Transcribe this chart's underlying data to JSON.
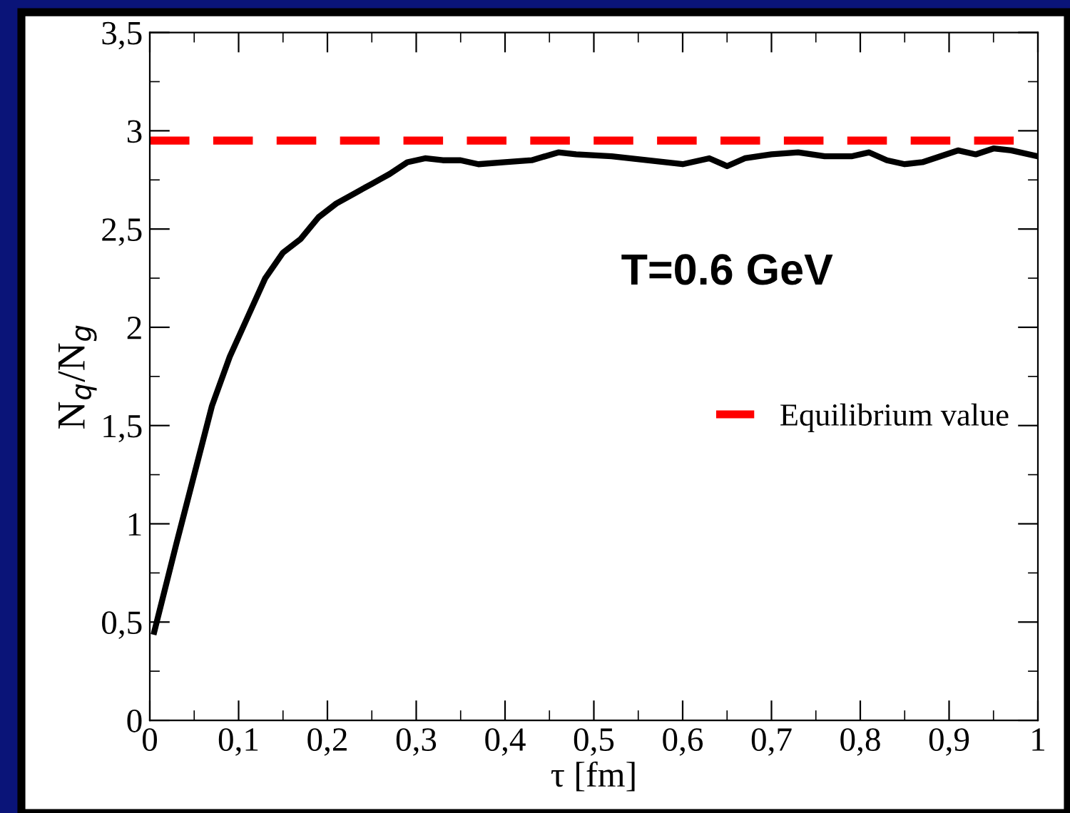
{
  "chart_data": {
    "type": "line",
    "xlabel": "τ [fm]",
    "ylabel": "N$_{q}$/N$_{g}$",
    "x": [
      0.005,
      0.03,
      0.05,
      0.07,
      0.09,
      0.11,
      0.13,
      0.15,
      0.17,
      0.19,
      0.21,
      0.23,
      0.25,
      0.27,
      0.29,
      0.31,
      0.33,
      0.35,
      0.37,
      0.4,
      0.43,
      0.46,
      0.48,
      0.52,
      0.56,
      0.6,
      0.63,
      0.65,
      0.67,
      0.7,
      0.73,
      0.76,
      0.79,
      0.81,
      0.83,
      0.85,
      0.87,
      0.89,
      0.91,
      0.93,
      0.95,
      0.97,
      1.0
    ],
    "series": [
      {
        "color": "#000000",
        "values": [
          0.45,
          0.9,
          1.25,
          1.6,
          1.85,
          2.05,
          2.25,
          2.38,
          2.45,
          2.56,
          2.63,
          2.68,
          2.73,
          2.78,
          2.84,
          2.86,
          2.85,
          2.85,
          2.83,
          2.84,
          2.85,
          2.89,
          2.88,
          2.87,
          2.85,
          2.83,
          2.86,
          2.82,
          2.86,
          2.88,
          2.89,
          2.87,
          2.87,
          2.89,
          2.85,
          2.83,
          2.84,
          2.87,
          2.9,
          2.88,
          2.91,
          2.9,
          2.87
        ]
      }
    ],
    "ref_lines": [
      {
        "axis": "y",
        "value": 2.95,
        "label": "Equilibrium value",
        "color": "#ff0000",
        "line_style": "dashed"
      }
    ],
    "annotations": [
      "T=0.6 GeV"
    ],
    "xlim": [
      0,
      1
    ],
    "ylim": [
      0,
      3.5
    ],
    "xticks": [
      0,
      {
        "value": 0.1,
        "label": "0,1"
      },
      {
        "value": 0.2,
        "label": "0,2"
      },
      {
        "value": 0.3,
        "label": "0,3"
      },
      {
        "value": 0.4,
        "label": "0,4"
      },
      {
        "value": 0.5,
        "label": "0,5"
      },
      {
        "value": 0.6,
        "label": "0,6"
      },
      {
        "value": 0.7,
        "label": "0,7"
      },
      {
        "value": 0.8,
        "label": "0,8"
      },
      {
        "value": 0.9,
        "label": "0,9"
      },
      1
    ],
    "yticks": [
      0,
      {
        "value": 0.5,
        "label": "0,5"
      },
      1,
      {
        "value": 1.5,
        "label": "1,5"
      },
      2,
      {
        "value": 2.5,
        "label": "2,5"
      },
      3,
      {
        "value": 3.5,
        "label": "3,5"
      }
    ],
    "legend": "right",
    "grid": false
  }
}
